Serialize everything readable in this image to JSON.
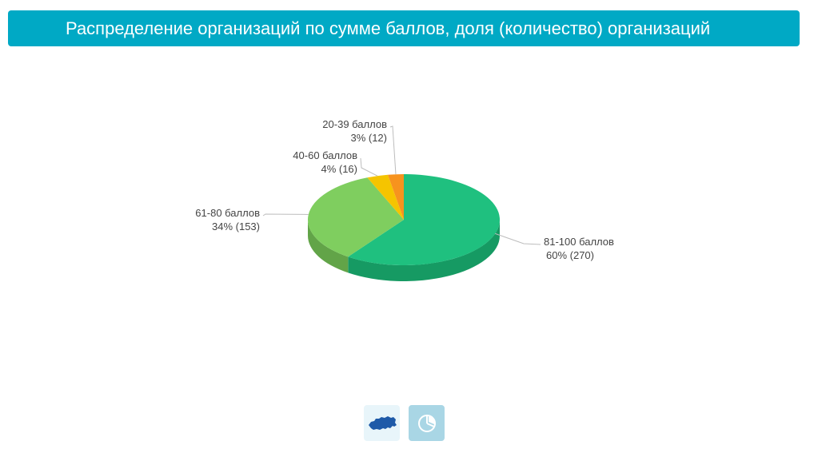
{
  "header": {
    "title": "Распределение организаций по сумме баллов, доля (количество) организаций"
  },
  "chart_data": {
    "type": "pie",
    "title": "Распределение организаций по сумме баллов, доля (количество) организаций",
    "slices": [
      {
        "label": "81-100 баллов",
        "percent": "60%",
        "count": 270,
        "color": "#1fc07f",
        "sideColor": "#169a63"
      },
      {
        "label": "61-80 баллов",
        "percent": "34%",
        "count": 153,
        "color": "#7fce5f",
        "sideColor": "#62a448"
      },
      {
        "label": "40-60 баллов",
        "percent": "4%",
        "count": 16,
        "color": "#f5c400",
        "sideColor": "#c79f00"
      },
      {
        "label": "20-39 баллов",
        "percent": "3%",
        "count": 12,
        "color": "#f7931e",
        "sideColor": "#c77514"
      }
    ]
  },
  "controls": {
    "map_icon": "russia-map-icon",
    "pie_icon": "pie-chart-icon",
    "pie_color": "#ffffff",
    "map_color": "#1e5aa8"
  }
}
